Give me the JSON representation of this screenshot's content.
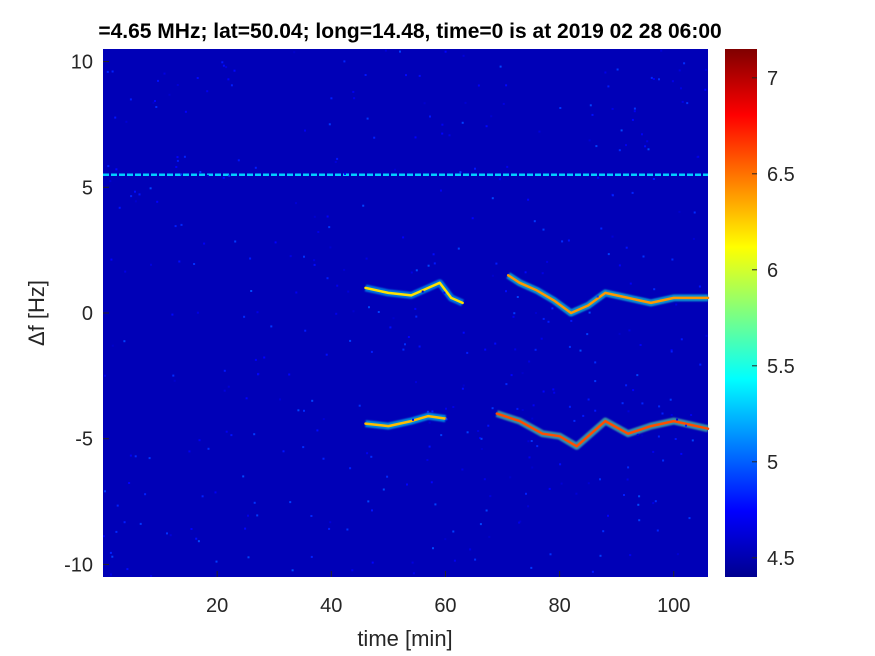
{
  "chart_data": {
    "type": "heatmap",
    "title": "=4.65 MHz;  lat=50.04; long=14.48, time=0 is at 2019 02 28 06:00",
    "xlabel": "time [min]",
    "ylabel": "Δf [Hz]",
    "xlim": [
      0,
      106
    ],
    "ylim": [
      -10.5,
      10.5
    ],
    "x_ticks": [
      20,
      40,
      60,
      80,
      100
    ],
    "y_ticks": [
      10,
      5,
      0,
      -5,
      -10
    ],
    "grid": false,
    "colormap": "jet",
    "colorbar": {
      "clim": [
        4.4,
        7.15
      ],
      "ticks": [
        7,
        6.5,
        6,
        5.5,
        5,
        4.5
      ]
    },
    "background_value": 4.55,
    "features": [
      {
        "name": "constant line",
        "x_range": [
          0,
          106
        ],
        "y": 5.5,
        "value": 5.3
      },
      {
        "name": "upper trace A",
        "points": [
          [
            46,
            1.0
          ],
          [
            50,
            0.8
          ],
          [
            54,
            0.7
          ],
          [
            57,
            1.0
          ],
          [
            59,
            1.2
          ],
          [
            61,
            0.6
          ],
          [
            63,
            0.4
          ]
        ],
        "value": 6.2
      },
      {
        "name": "upper trace B",
        "points": [
          [
            71,
            1.5
          ],
          [
            73,
            1.2
          ],
          [
            76,
            0.9
          ],
          [
            79,
            0.5
          ],
          [
            82,
            0.0
          ],
          [
            85,
            0.3
          ],
          [
            88,
            0.8
          ],
          [
            92,
            0.6
          ],
          [
            96,
            0.4
          ],
          [
            100,
            0.6
          ],
          [
            106,
            0.6
          ]
        ],
        "value": 6.4
      },
      {
        "name": "lower trace A",
        "points": [
          [
            46,
            -4.4
          ],
          [
            50,
            -4.5
          ],
          [
            54,
            -4.3
          ],
          [
            57,
            -4.1
          ],
          [
            60,
            -4.2
          ]
        ],
        "value": 6.3
      },
      {
        "name": "lower trace B",
        "points": [
          [
            69,
            -4.0
          ],
          [
            73,
            -4.3
          ],
          [
            77,
            -4.8
          ],
          [
            80,
            -4.9
          ],
          [
            83,
            -5.3
          ],
          [
            86,
            -4.7
          ],
          [
            88,
            -4.3
          ],
          [
            92,
            -4.8
          ],
          [
            96,
            -4.5
          ],
          [
            100,
            -4.3
          ],
          [
            106,
            -4.6
          ]
        ],
        "value": 6.6
      }
    ]
  }
}
